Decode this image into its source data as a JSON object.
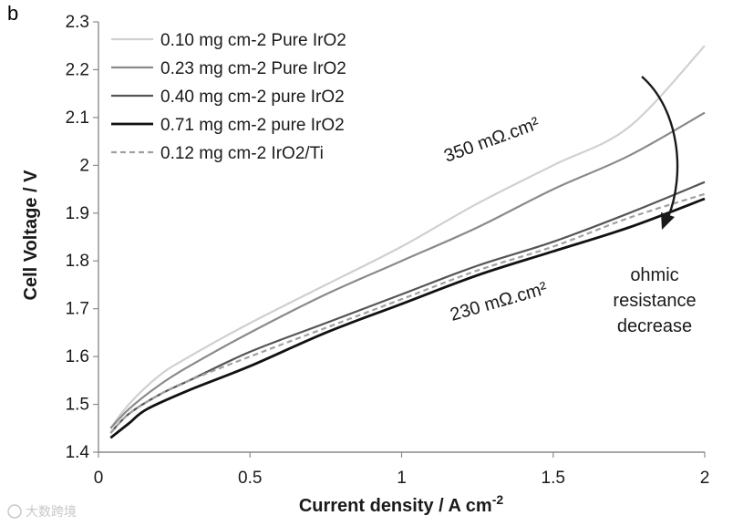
{
  "panel_label": "b",
  "watermark": "大数跨境",
  "chart_data": {
    "type": "line",
    "xlabel": "Current density / A cm",
    "xlabel_superscript": "-2",
    "ylabel": "Cell Voltage / V",
    "xlim": [
      0,
      2
    ],
    "ylim": [
      1.4,
      2.3
    ],
    "xticks": [
      0,
      0.5,
      1,
      1.5,
      2
    ],
    "xtick_labels": [
      "0",
      "0.5",
      "1",
      "1.5",
      "2"
    ],
    "yticks": [
      1.4,
      1.5,
      1.6,
      1.7,
      1.8,
      1.9,
      2.0,
      2.1,
      2.2,
      2.3
    ],
    "ytick_labels": [
      "1.4",
      "1.5",
      "1.6",
      "1.7",
      "1.8",
      "1.9",
      "2",
      "2.1",
      "2.2",
      "2.3"
    ],
    "grid": false,
    "legend_position": "top-left",
    "series": [
      {
        "name": "0.10 mg cm-2 Pure IrO2",
        "color": "#d0d0d0",
        "width": 2.2,
        "dash": "",
        "x": [
          0.04,
          0.1,
          0.2,
          0.3,
          0.5,
          0.75,
          1.0,
          1.25,
          1.5,
          1.75,
          2.0
        ],
        "y": [
          1.45,
          1.5,
          1.56,
          1.6,
          1.67,
          1.75,
          1.83,
          1.92,
          2.0,
          2.08,
          2.25
        ]
      },
      {
        "name": "0.23 mg cm-2 Pure IrO2",
        "color": "#8a8a8a",
        "width": 2.2,
        "dash": "",
        "x": [
          0.04,
          0.1,
          0.2,
          0.3,
          0.5,
          0.75,
          1.0,
          1.25,
          1.5,
          1.75,
          2.0
        ],
        "y": [
          1.45,
          1.49,
          1.54,
          1.58,
          1.65,
          1.73,
          1.8,
          1.87,
          1.95,
          2.02,
          2.11
        ]
      },
      {
        "name": "0.40 mg cm-2 pure IrO2",
        "color": "#555555",
        "width": 2.2,
        "dash": "",
        "x": [
          0.04,
          0.1,
          0.2,
          0.3,
          0.5,
          0.75,
          1.0,
          1.25,
          1.5,
          1.75,
          2.0
        ],
        "y": [
          1.44,
          1.48,
          1.52,
          1.55,
          1.61,
          1.67,
          1.73,
          1.79,
          1.84,
          1.9,
          1.965
        ]
      },
      {
        "name": "0.71 mg cm-2 pure IrO2",
        "color": "#111111",
        "width": 2.8,
        "dash": "",
        "x": [
          0.04,
          0.1,
          0.16,
          0.3,
          0.5,
          0.75,
          1.0,
          1.25,
          1.5,
          1.75,
          2.0
        ],
        "y": [
          1.43,
          1.46,
          1.49,
          1.53,
          1.58,
          1.65,
          1.71,
          1.77,
          1.82,
          1.87,
          1.93
        ]
      },
      {
        "name": "0.12 mg cm-2 IrO2/Ti",
        "color": "#a0a0a0",
        "width": 2.2,
        "dash": "6,4",
        "x": [
          0.04,
          0.1,
          0.2,
          0.3,
          0.5,
          0.75,
          1.0,
          1.25,
          1.5,
          1.75,
          2.0
        ],
        "y": [
          1.44,
          1.48,
          1.52,
          1.55,
          1.6,
          1.66,
          1.72,
          1.78,
          1.83,
          1.89,
          1.94
        ]
      }
    ],
    "annotations": [
      {
        "text": "350 mΩ.cm²"
      },
      {
        "text": "230 mΩ.cm²"
      },
      {
        "text": "ohmic"
      },
      {
        "text": "resistance"
      },
      {
        "text": "decrease"
      }
    ]
  }
}
